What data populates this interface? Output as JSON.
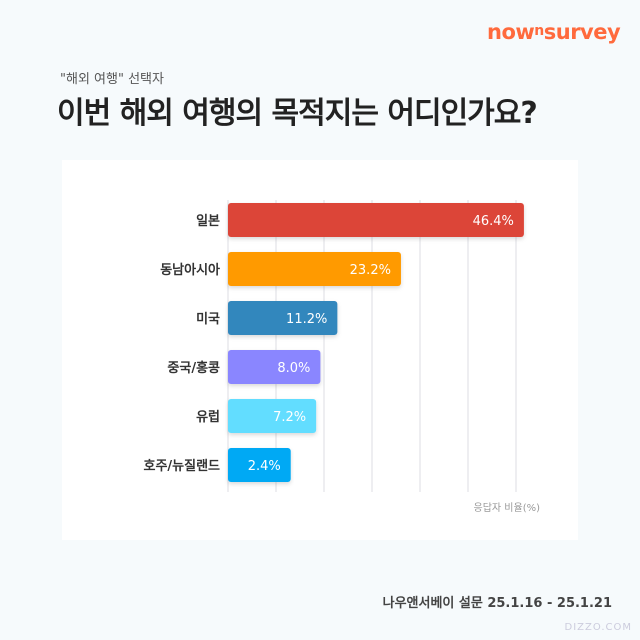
{
  "brand": {
    "logo_text": "nownsurvey",
    "color": "#ff6a3d"
  },
  "header": {
    "subtitle": "\"해외 여행\" 선택자",
    "title": "이번 해외 여행의 목적지는 어디인가요?"
  },
  "chart_data": {
    "type": "bar",
    "orientation": "horizontal",
    "categories": [
      "일본",
      "동남아시아",
      "미국",
      "중국/홍콩",
      "유럽",
      "호주/뉴질랜드"
    ],
    "values": [
      46.4,
      23.2,
      11.2,
      8.0,
      7.2,
      2.4
    ],
    "data_labels": [
      "46.4%",
      "23.2%",
      "11.2%",
      "8.0%",
      "7.2%",
      "2.4%"
    ],
    "colors": [
      "#dc4437",
      "#ff9a00",
      "#3287bd",
      "#8a86ff",
      "#62ddff",
      "#05a9f4"
    ],
    "xlabel": "응답자 비율(%)",
    "grid": true
  },
  "footer": {
    "source": "나우앤서베이 설문  25.1.16 - 25.1.21",
    "watermark": "DIZZO.COM"
  }
}
